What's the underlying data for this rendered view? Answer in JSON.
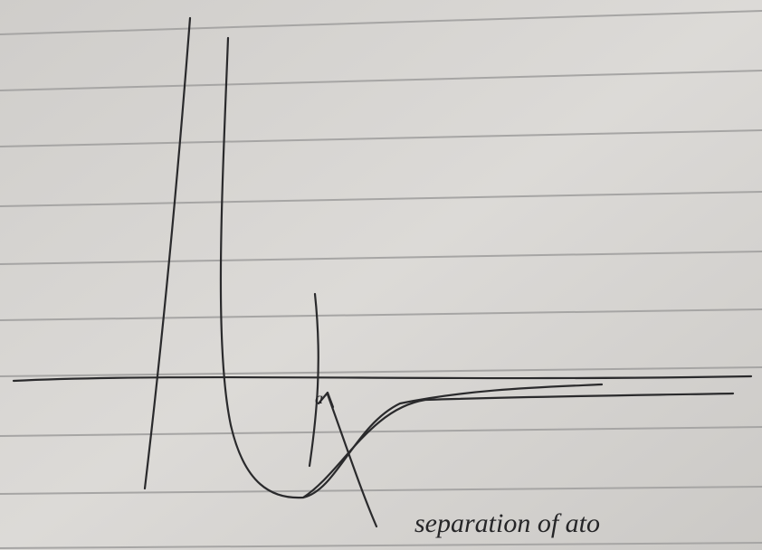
{
  "annotations": {
    "axis_label": "separation of ato",
    "marker": "a"
  }
}
